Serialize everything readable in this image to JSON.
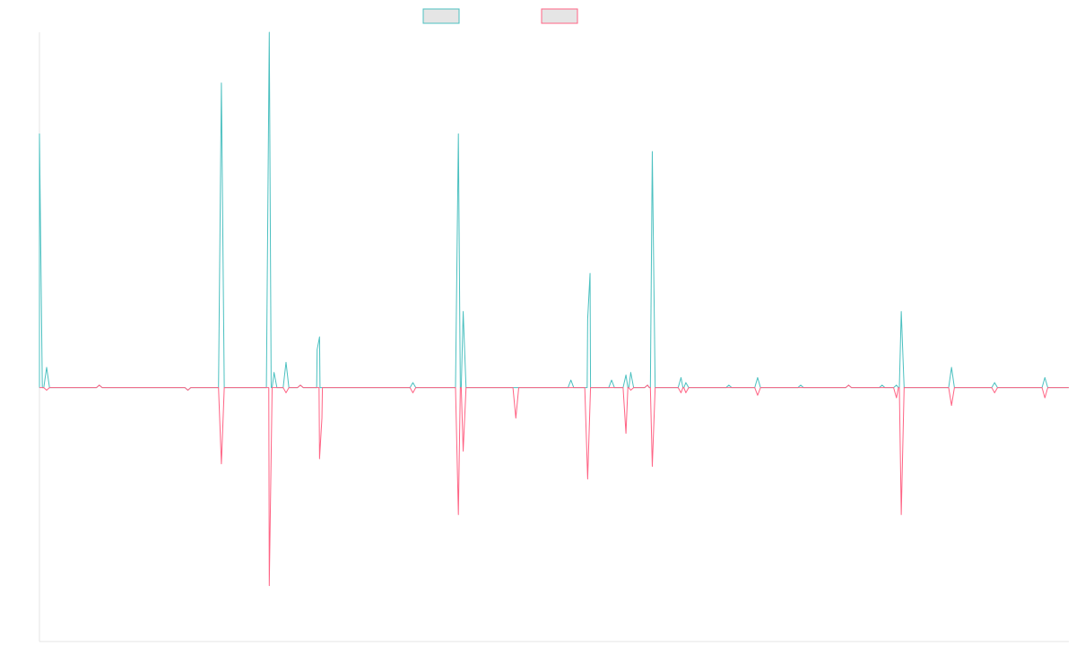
{
  "chart_data": {
    "type": "line",
    "title": "",
    "xlabel": "",
    "ylabel": "",
    "grid": false,
    "legend": {
      "position": "top-center"
    },
    "ylim": [
      -1,
      1.4
    ],
    "x_range": [
      0,
      430
    ],
    "baseline": 0,
    "series": [
      {
        "color": "#4BC0C0",
        "fill": "#E5E5E5",
        "spikes": [
          [
            0,
            1.0
          ],
          [
            3,
            0.08
          ],
          [
            25,
            0.01
          ],
          [
            62,
            -0.01
          ],
          [
            76,
            1.2
          ],
          [
            96,
            1.4
          ],
          [
            98,
            0.06
          ],
          [
            103,
            0.1
          ],
          [
            109,
            0.01
          ],
          [
            116,
            0.15
          ],
          [
            117,
            0.2
          ],
          [
            156,
            0.02
          ],
          [
            175,
            1.0
          ],
          [
            177,
            0.3
          ],
          [
            222,
            0.03
          ],
          [
            229,
            0.27
          ],
          [
            230,
            0.45
          ],
          [
            239,
            0.03
          ],
          [
            245,
            0.05
          ],
          [
            247,
            0.06
          ],
          [
            254,
            0.01
          ],
          [
            256,
            0.93
          ],
          [
            268,
            0.04
          ],
          [
            270,
            0.02
          ],
          [
            288,
            0.01
          ],
          [
            300,
            0.04
          ],
          [
            318,
            0.01
          ],
          [
            338,
            0.01
          ],
          [
            352,
            0.01
          ],
          [
            358,
            0.01
          ],
          [
            360,
            0.3
          ],
          [
            381,
            0.08
          ],
          [
            399,
            0.02
          ],
          [
            420,
            0.04
          ]
        ]
      },
      {
        "color": "#FF6384",
        "fill": "#E5E5E5",
        "spikes": [
          [
            3,
            -0.01
          ],
          [
            25,
            0.01
          ],
          [
            62,
            -0.01
          ],
          [
            76,
            -0.3
          ],
          [
            96,
            -0.78
          ],
          [
            97,
            -0.13
          ],
          [
            103,
            -0.02
          ],
          [
            109,
            0.01
          ],
          [
            117,
            -0.28
          ],
          [
            118,
            -0.12
          ],
          [
            156,
            -0.02
          ],
          [
            175,
            -0.5
          ],
          [
            177,
            -0.25
          ],
          [
            199,
            -0.12
          ],
          [
            229,
            -0.36
          ],
          [
            245,
            -0.18
          ],
          [
            247,
            -0.01
          ],
          [
            254,
            0.01
          ],
          [
            256,
            -0.31
          ],
          [
            268,
            -0.02
          ],
          [
            270,
            -0.02
          ],
          [
            300,
            -0.03
          ],
          [
            338,
            0.01
          ],
          [
            358,
            -0.04
          ],
          [
            360,
            -0.5
          ],
          [
            381,
            -0.07
          ],
          [
            399,
            -0.02
          ],
          [
            420,
            -0.04
          ]
        ]
      }
    ]
  }
}
